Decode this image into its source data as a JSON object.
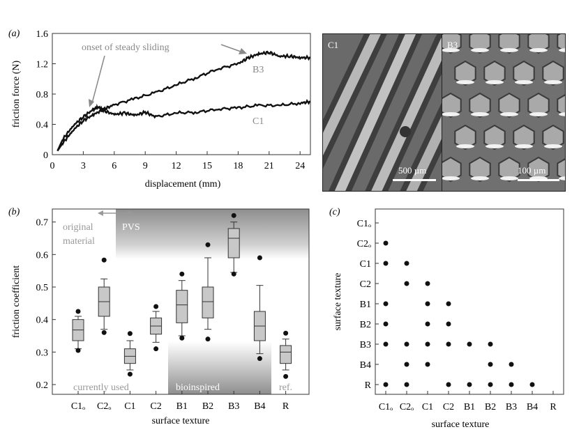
{
  "panel_labels": {
    "a": "(a)",
    "b": "(b)",
    "c": "(c)"
  },
  "images": {
    "left": {
      "label": "C1",
      "scale": "500 µm",
      "color": "#6a6a6a"
    },
    "right": {
      "label": "B3",
      "scale": "100 µm",
      "color": "#6f6f6f"
    }
  },
  "chart_data": [
    {
      "id": "a",
      "type": "line",
      "xlabel": "displacement (mm)",
      "ylabel": "friction force (N)",
      "xlim": [
        0,
        25
      ],
      "ylim": [
        0,
        1.6
      ],
      "xticks": [
        0,
        3,
        6,
        9,
        12,
        15,
        18,
        21,
        24
      ],
      "yticks": [
        0,
        0.4,
        0.8,
        1.2,
        1.6
      ],
      "series": [
        {
          "name": "B3",
          "x": [
            0.5,
            1,
            2,
            3,
            4,
            5,
            6,
            8,
            10,
            12,
            14,
            16,
            18,
            19,
            20,
            21,
            22,
            23,
            24,
            25
          ],
          "y": [
            0.05,
            0.15,
            0.32,
            0.45,
            0.53,
            0.6,
            0.66,
            0.74,
            0.82,
            0.92,
            1.02,
            1.13,
            1.2,
            1.28,
            1.33,
            1.35,
            1.3,
            1.3,
            1.28,
            1.28
          ]
        },
        {
          "name": "C1",
          "x": [
            0.5,
            1,
            2,
            3,
            4,
            4.5,
            5,
            6,
            7,
            8,
            9,
            10,
            12,
            14,
            16,
            18,
            20,
            22,
            24,
            25
          ],
          "y": [
            0.05,
            0.2,
            0.38,
            0.5,
            0.6,
            0.63,
            0.58,
            0.53,
            0.55,
            0.52,
            0.56,
            0.5,
            0.55,
            0.56,
            0.6,
            0.62,
            0.65,
            0.65,
            0.68,
            0.7
          ]
        }
      ],
      "annotations": [
        {
          "text": "onset of steady sliding"
        },
        {
          "text": "B3"
        },
        {
          "text": "C1"
        }
      ]
    },
    {
      "id": "b",
      "type": "box",
      "xlabel": "surface texture",
      "ylabel": "friction coefficient",
      "ylim": [
        0.17,
        0.74
      ],
      "yticks": [
        0.2,
        0.3,
        0.4,
        0.5,
        0.6,
        0.7
      ],
      "categories": [
        "C1ₒ",
        "C2ₒ",
        "C1",
        "C2",
        "B1",
        "B2",
        "B3",
        "B4",
        "R"
      ],
      "boxes": [
        {
          "min": 0.31,
          "q1": 0.335,
          "median": 0.368,
          "q3": 0.4,
          "max": 0.41,
          "outliers": [
            0.305,
            0.425
          ]
        },
        {
          "min": 0.37,
          "q1": 0.41,
          "median": 0.455,
          "q3": 0.5,
          "max": 0.525,
          "outliers": [
            0.36,
            0.583
          ]
        },
        {
          "min": 0.245,
          "q1": 0.265,
          "median": 0.287,
          "q3": 0.31,
          "max": 0.335,
          "outliers": [
            0.232,
            0.357
          ]
        },
        {
          "min": 0.33,
          "q1": 0.355,
          "median": 0.38,
          "q3": 0.405,
          "max": 0.425,
          "outliers": [
            0.31,
            0.44
          ]
        },
        {
          "min": 0.35,
          "q1": 0.39,
          "median": 0.445,
          "q3": 0.49,
          "max": 0.52,
          "outliers": [
            0.343,
            0.54
          ]
        },
        {
          "min": 0.37,
          "q1": 0.405,
          "median": 0.455,
          "q3": 0.5,
          "max": 0.59,
          "outliers": [
            0.34,
            0.63
          ]
        },
        {
          "min": 0.545,
          "q1": 0.59,
          "median": 0.65,
          "q3": 0.68,
          "max": 0.7,
          "outliers": [
            0.54,
            0.72
          ]
        },
        {
          "min": 0.295,
          "q1": 0.335,
          "median": 0.38,
          "q3": 0.425,
          "max": 0.505,
          "outliers": [
            0.28,
            0.59
          ]
        },
        {
          "min": 0.245,
          "q1": 0.265,
          "median": 0.3,
          "q3": 0.32,
          "max": 0.34,
          "outliers": [
            0.225,
            0.358
          ]
        }
      ],
      "region_labels": {
        "original": [
          "original",
          "material"
        ],
        "pvs": "PVS",
        "currently_used": "currently used",
        "bioinspired": "bioinspired",
        "ref": "ref."
      }
    },
    {
      "id": "c",
      "type": "scatter",
      "xlabel": "surface texture",
      "ylabel": "surface texture",
      "x_categories": [
        "C1ₒ",
        "C2ₒ",
        "C1",
        "C2",
        "B1",
        "B2",
        "B3",
        "B4",
        "R"
      ],
      "y_categories": [
        "C1ₒ",
        "C2ₒ",
        "C1",
        "C2",
        "B1",
        "B2",
        "B3",
        "B4",
        "R"
      ],
      "points": [
        [
          0,
          1
        ],
        [
          0,
          2
        ],
        [
          0,
          4
        ],
        [
          0,
          5
        ],
        [
          0,
          6
        ],
        [
          0,
          8
        ],
        [
          1,
          2
        ],
        [
          1,
          3
        ],
        [
          1,
          6
        ],
        [
          1,
          7
        ],
        [
          1,
          8
        ],
        [
          2,
          3
        ],
        [
          2,
          4
        ],
        [
          2,
          5
        ],
        [
          2,
          6
        ],
        [
          2,
          7
        ],
        [
          3,
          4
        ],
        [
          3,
          5
        ],
        [
          3,
          6
        ],
        [
          3,
          8
        ],
        [
          4,
          6
        ],
        [
          4,
          8
        ],
        [
          5,
          6
        ],
        [
          5,
          7
        ],
        [
          5,
          8
        ],
        [
          6,
          7
        ],
        [
          6,
          8
        ],
        [
          7,
          8
        ]
      ]
    }
  ]
}
